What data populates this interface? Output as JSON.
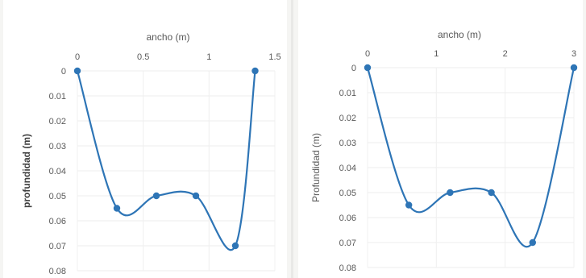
{
  "chart_data": [
    {
      "type": "line",
      "xlabel": "ancho (m)",
      "ylabel": "profundidad (m)",
      "xlim": [
        0,
        1.5
      ],
      "ylim": [
        0,
        0.08
      ],
      "x_ticks": [
        "0",
        "0.5",
        "1",
        "1.5"
      ],
      "y_ticks": [
        "0",
        "0.01",
        "0.02",
        "0.03",
        "0.04",
        "0.05",
        "0.06",
        "0.07",
        "0.08"
      ],
      "y_axis_inverted": true,
      "x_axis_position": "top",
      "smooth": true,
      "color": "#2e75b6",
      "series": [
        {
          "x": [
            0,
            0.3,
            0.6,
            0.9,
            1.2,
            1.35
          ],
          "y": [
            0,
            0.055,
            0.05,
            0.05,
            0.07,
            0
          ]
        }
      ]
    },
    {
      "type": "line",
      "xlabel": "ancho (m)",
      "ylabel": "Profundidad (m)",
      "xlim": [
        0,
        3
      ],
      "ylim": [
        0,
        0.08
      ],
      "x_ticks": [
        "0",
        "1",
        "2",
        "3"
      ],
      "y_ticks": [
        "0",
        "0.01",
        "0.02",
        "0.03",
        "0.04",
        "0.05",
        "0.06",
        "0.07",
        "0.08"
      ],
      "y_axis_inverted": true,
      "x_axis_position": "top",
      "smooth": true,
      "color": "#2e75b6",
      "series": [
        {
          "x": [
            0,
            0.6,
            1.2,
            1.8,
            2.4,
            3.0
          ],
          "y": [
            0,
            0.055,
            0.05,
            0.05,
            0.07,
            0
          ]
        }
      ]
    }
  ]
}
